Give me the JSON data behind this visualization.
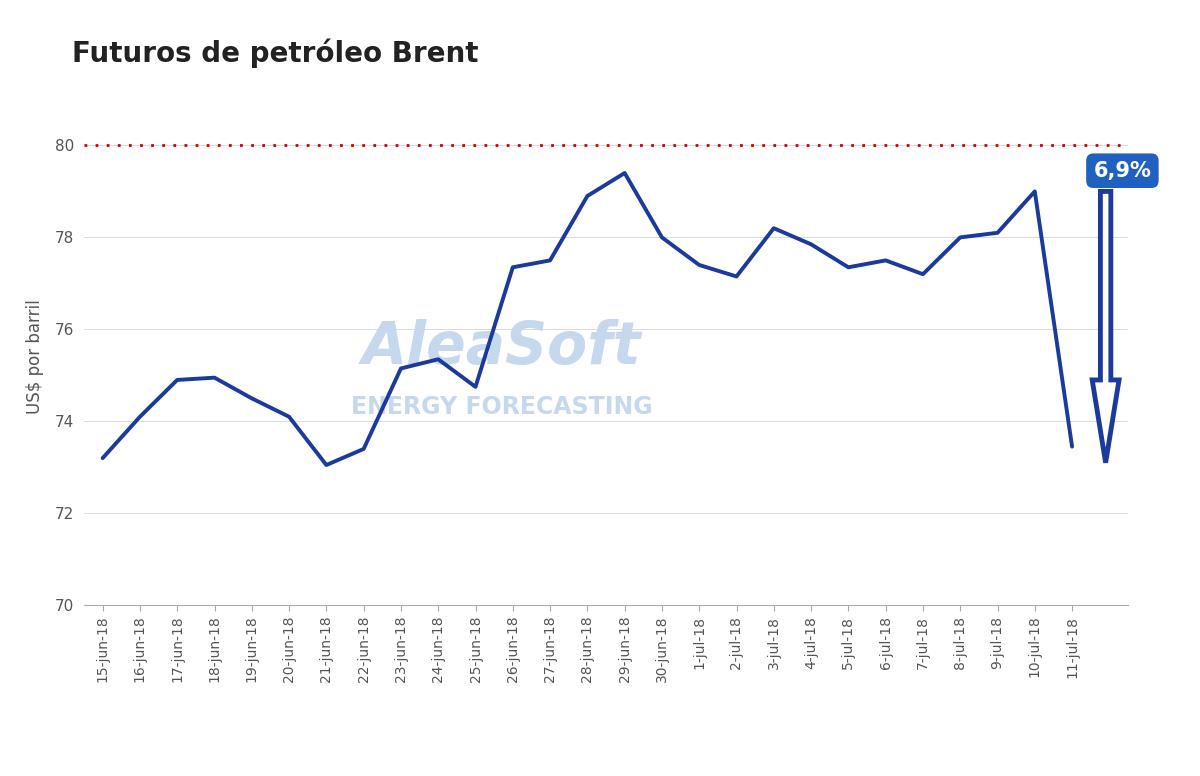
{
  "title": "Futuros de petróleo Brent",
  "ylabel": "US$ por barril",
  "background_color": "#ffffff",
  "line_color": "#1a3a9e",
  "line_width": 2.8,
  "ref_line_y": 80,
  "ref_line_color": "#cc0000",
  "ylim": [
    70,
    80.8
  ],
  "yticks": [
    70,
    72,
    74,
    76,
    78,
    80
  ],
  "watermark_text1": "AleaSoft",
  "watermark_text2": "ENERGY FORECASTING",
  "arrow_label": "6,9%",
  "arrow_color": "#1a3a9e",
  "arrow_label_bg": "#2060c0",
  "dates": [
    "15-jun-18",
    "16-jun-18",
    "17-jun-18",
    "18-jun-18",
    "19-jun-18",
    "20-jun-18",
    "21-jun-18",
    "22-jun-18",
    "23-jun-18",
    "24-jun-18",
    "25-jun-18",
    "26-jun-18",
    "27-jun-18",
    "28-jun-18",
    "29-jun-18",
    "30-jun-18",
    "1-jul-18",
    "2-jul-18",
    "3-jul-18",
    "4-jul-18",
    "5-jul-18",
    "6-jul-18",
    "7-jul-18",
    "8-jul-18",
    "9-jul-18",
    "10-jul-18",
    "11-jul-18"
  ],
  "values": [
    73.2,
    74.1,
    74.9,
    74.95,
    74.5,
    74.1,
    73.05,
    73.4,
    75.15,
    75.35,
    74.75,
    77.35,
    77.5,
    78.9,
    79.4,
    78.0,
    77.4,
    77.15,
    78.2,
    77.85,
    77.35,
    77.5,
    77.2,
    78.0,
    78.1,
    79.0,
    73.45
  ]
}
